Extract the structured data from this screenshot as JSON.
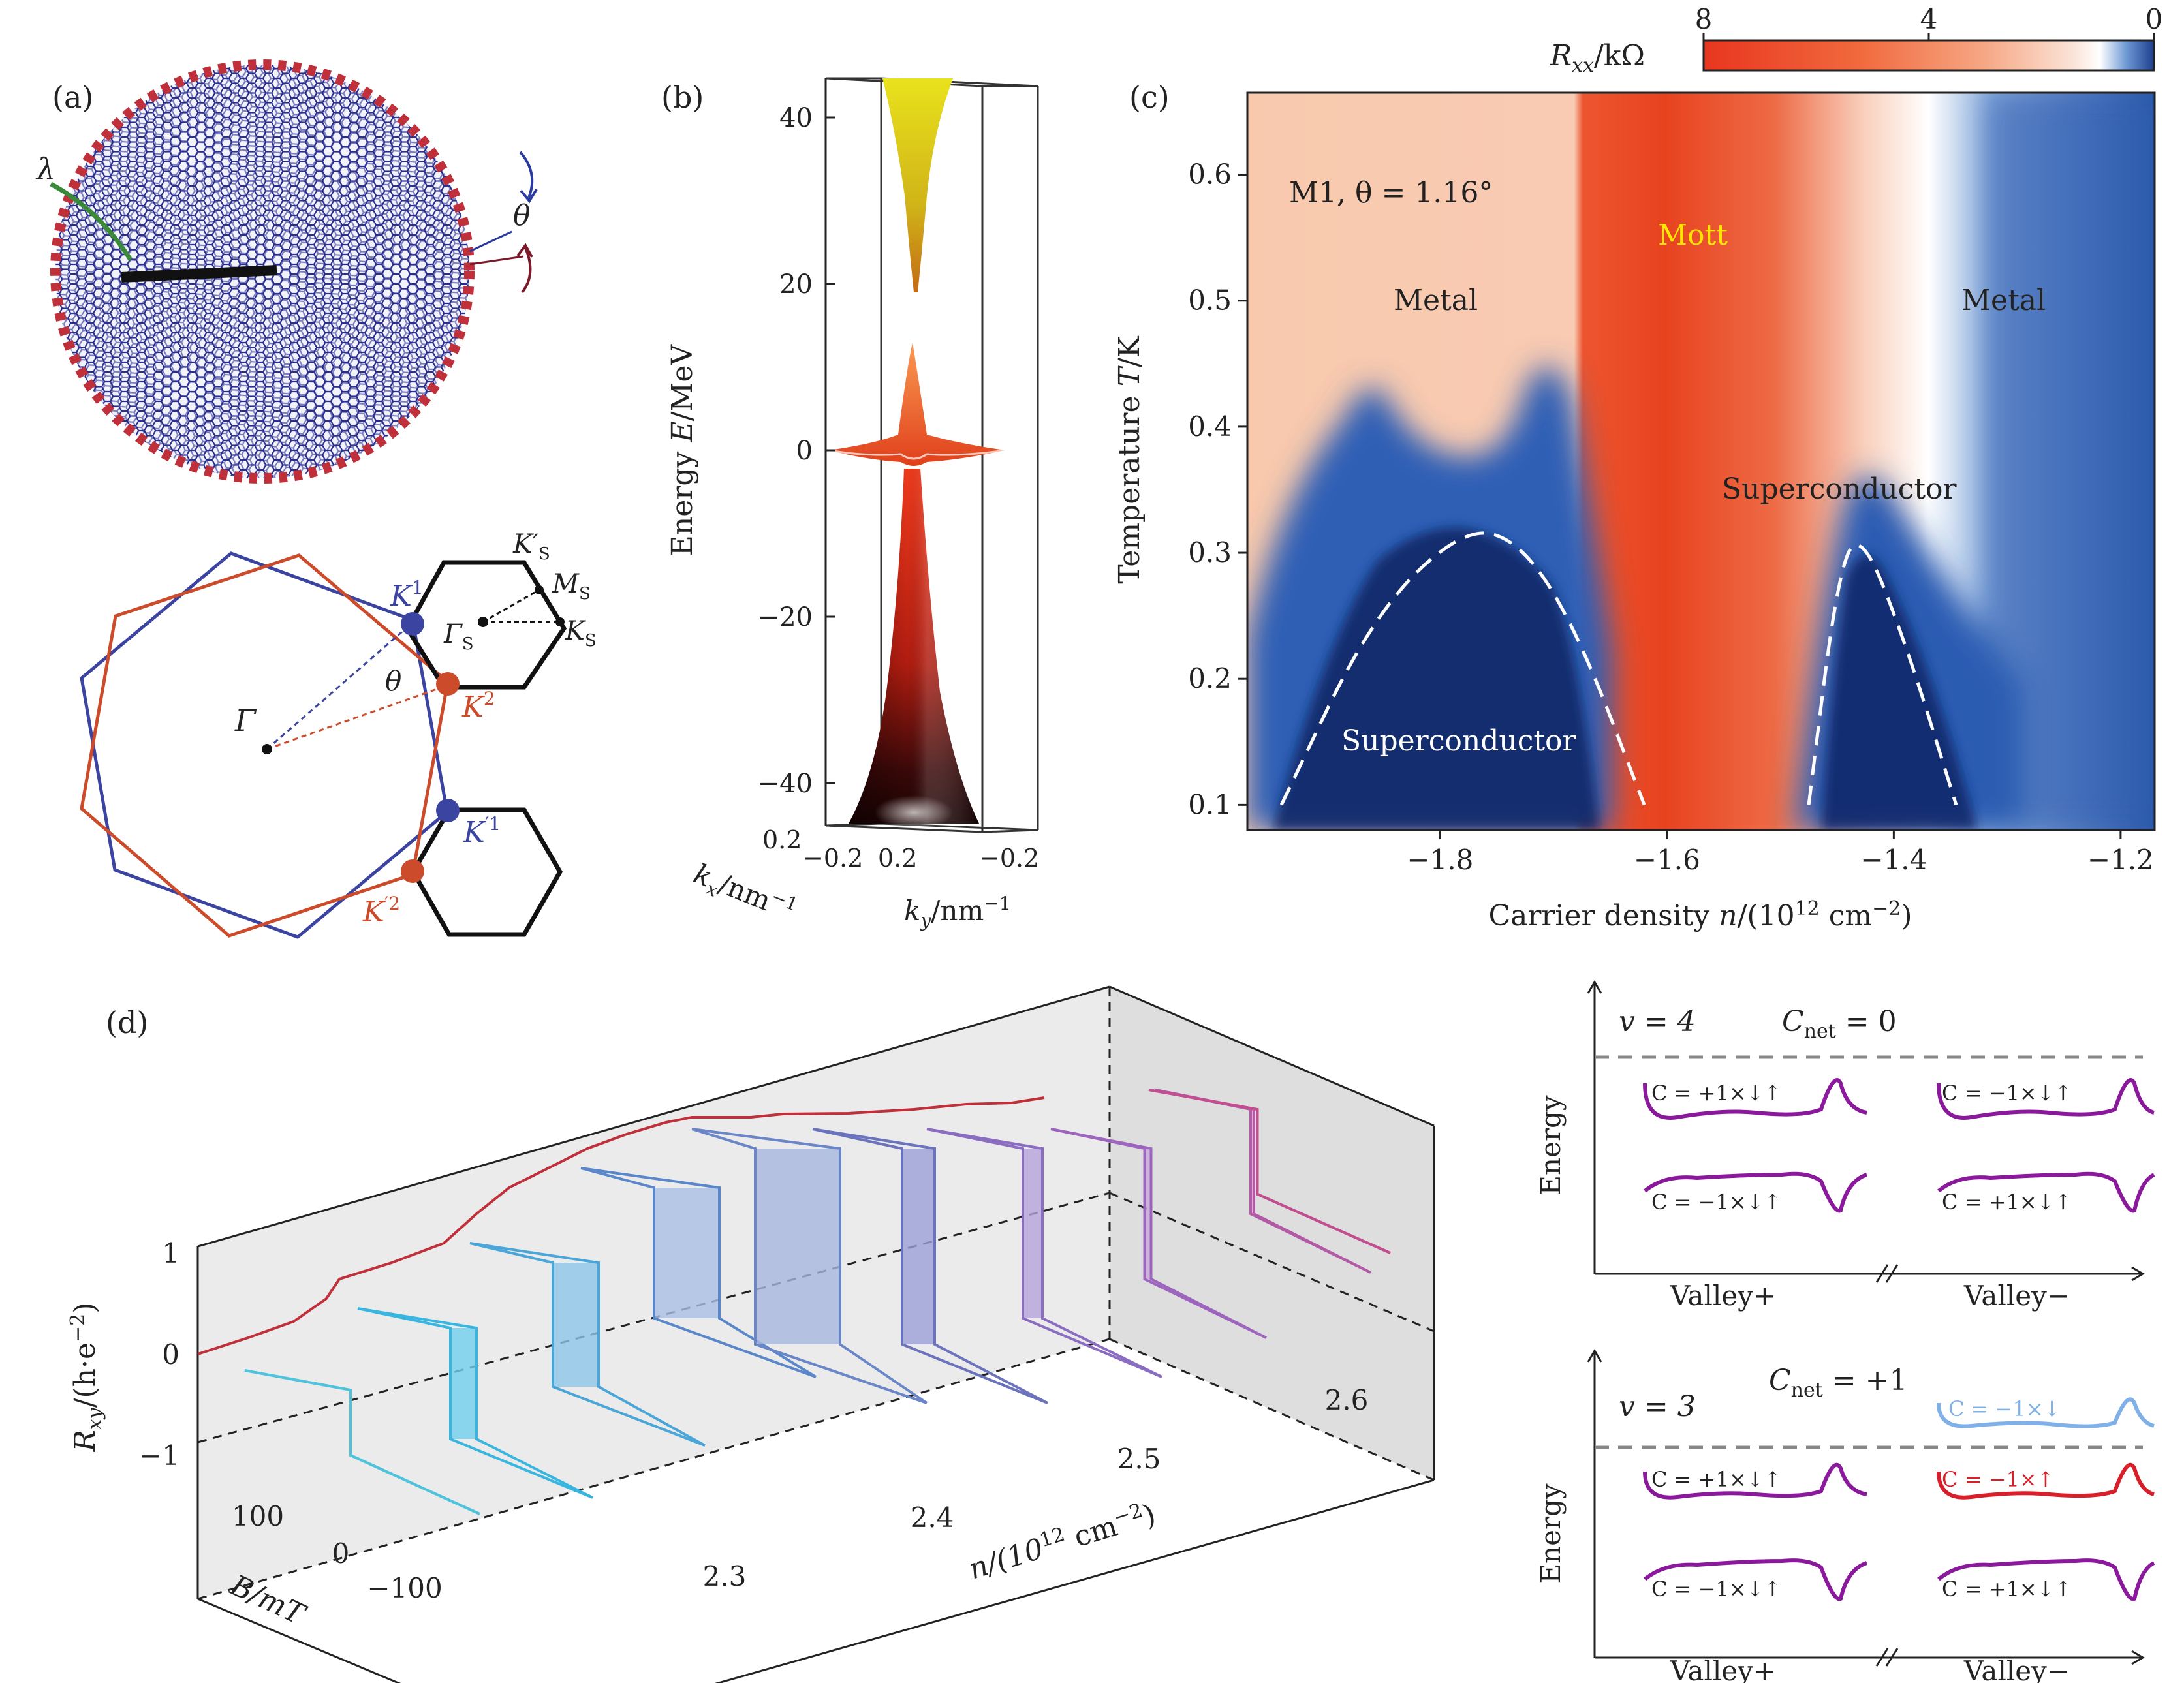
{
  "panel_a": {
    "label": "(a)",
    "lambda": "λ",
    "theta": "θ",
    "k1": "K",
    "k1_sup": "1",
    "k2": "K",
    "k2_sup": "2",
    "kp1": "K",
    "kp1_sup": "′1",
    "kp2": "K",
    "kp2_sup": "′2",
    "gamma": "Γ",
    "gamma_s": "Γ",
    "gamma_s_sub": "S",
    "k_s": "K",
    "k_s_sub": "S",
    "m_s": "M",
    "m_s_sub": "S",
    "kp_s": "K′",
    "kp_s_sub": "S",
    "colors": {
      "blue": "#3b44a0",
      "red": "#cc4b2b",
      "dots": "#c0303a"
    }
  },
  "panel_b": {
    "label": "(b)",
    "ylabel_prefix": "Energy ",
    "ylabel_var": "E",
    "ylabel_unit": "/MeV",
    "kx_var": "k",
    "kx_sub": "x",
    "kx_unit": "/nm",
    "kx_exp": "−1",
    "ky_var": "k",
    "ky_sub": "y",
    "ky_unit": "/nm",
    "ky_exp": "−1",
    "kx_ticks": [
      "0.2",
      "−0.2"
    ],
    "ky_ticks": [
      "0.2",
      "−0.2"
    ]
  },
  "panel_c": {
    "label": "(c)",
    "colorbar": {
      "label_var": "R",
      "label_sub": "xx",
      "label_unit": "/kΩ",
      "ticks": [
        "8",
        "4",
        "0"
      ]
    },
    "annotation": "M1, θ = 1.16°",
    "regions": {
      "metal_left": "Metal",
      "mott": "Mott",
      "metal_right": "Metal",
      "sc_right": "Superconductor",
      "sc_left": "Superconductor"
    },
    "ylabel_prefix": "Temperature ",
    "ylabel_var": "T",
    "ylabel_unit": "/K",
    "xlabel_prefix": "Carrier density ",
    "xlabel_var": "n",
    "xlabel_unit": "/(10",
    "xlabel_exp": "12",
    "xlabel_end": " cm",
    "xlabel_exp2": "−2",
    "xlabel_close": ")",
    "mott_color": "#ffe600"
  },
  "panel_d": {
    "label": "(d)",
    "ylabel": "R",
    "ylabel_sub": "xy",
    "ylabel_unit": "/(h·e",
    "ylabel_exp": "−2",
    "ylabel_close": ")",
    "b_label": "B/mT",
    "b_ticks": [
      "100",
      "0",
      "−100"
    ],
    "n_label": "n/(10",
    "n_exp": "12",
    "n_end": " cm",
    "n_exp2": "−2",
    "n_close": ")",
    "z_ticks": [
      "1",
      "0",
      "−1"
    ]
  },
  "panel_e": {
    "top": {
      "nu": "v = 4",
      "cnet": "C",
      "cnet_sub": "net",
      "cnet_val": " = 0",
      "energy": "Energy",
      "b1": "C = +1×↓↑",
      "b2": "C = −1×↓↑",
      "b3": "C = −1×↓↑",
      "b4": "C = +1×↓↑",
      "valley_plus": "Valley+",
      "valley_minus": "Valley−"
    },
    "bottom": {
      "nu": "v = 3",
      "cnet": "C",
      "cnet_sub": "net",
      "cnet_val": " = +1",
      "energy": "Energy",
      "b0": "C = −1×↓",
      "b1": "C = +1×↓↑",
      "b2": "C = −1×↑",
      "b3": "C = −1×↓↑",
      "b4": "C = +1×↓↑",
      "valley_plus": "Valley+",
      "valley_minus": "Valley−"
    },
    "colors": {
      "purple": "#8a1a9b",
      "light_blue": "#7fb0e8",
      "red": "#d8202a"
    }
  },
  "chart_data": [
    {
      "type": "surface",
      "title": "(b)",
      "ylabel": "Energy E/MeV",
      "yticks": [
        40,
        20,
        0,
        -20,
        -40
      ],
      "ylim": [
        -45,
        45
      ],
      "xlabel": "kx/nm−1",
      "xlabel2": "ky/nm−1"
    },
    {
      "type": "heatmap",
      "title": "(c)",
      "xlabel": "Carrier density n/(10^12 cm^-2)",
      "ylabel": "Temperature T/K",
      "xticks": [
        -1.8,
        -1.6,
        -1.4,
        -1.2
      ],
      "yticks": [
        0.1,
        0.2,
        0.3,
        0.4,
        0.5,
        0.6
      ],
      "xlim": [
        -1.97,
        -1.17
      ],
      "ylim": [
        0.08,
        0.665
      ],
      "colorbar_range": [
        8,
        0
      ],
      "sc_dome_left": {
        "n": [
          -1.94,
          -1.86,
          -1.78,
          -1.73,
          -1.68,
          -1.62
        ],
        "T": [
          0.1,
          0.25,
          0.32,
          0.31,
          0.24,
          0.1
        ]
      },
      "sc_dome_right": {
        "n": [
          -1.475,
          -1.45,
          -1.43,
          -1.39,
          -1.345
        ],
        "T": [
          0.1,
          0.28,
          0.32,
          0.23,
          0.1
        ]
      }
    },
    {
      "type": "line",
      "title": "(d)",
      "xlabel": "B/mT",
      "ylabel": "Rxy/(h·e^-2)",
      "zlabel": "n/(10^12 cm^-2)",
      "zticks": [
        2.3,
        2.4,
        2.5,
        2.6
      ],
      "yticks": [
        -1,
        0,
        1
      ],
      "xticks": [
        100,
        0,
        -100
      ]
    }
  ]
}
